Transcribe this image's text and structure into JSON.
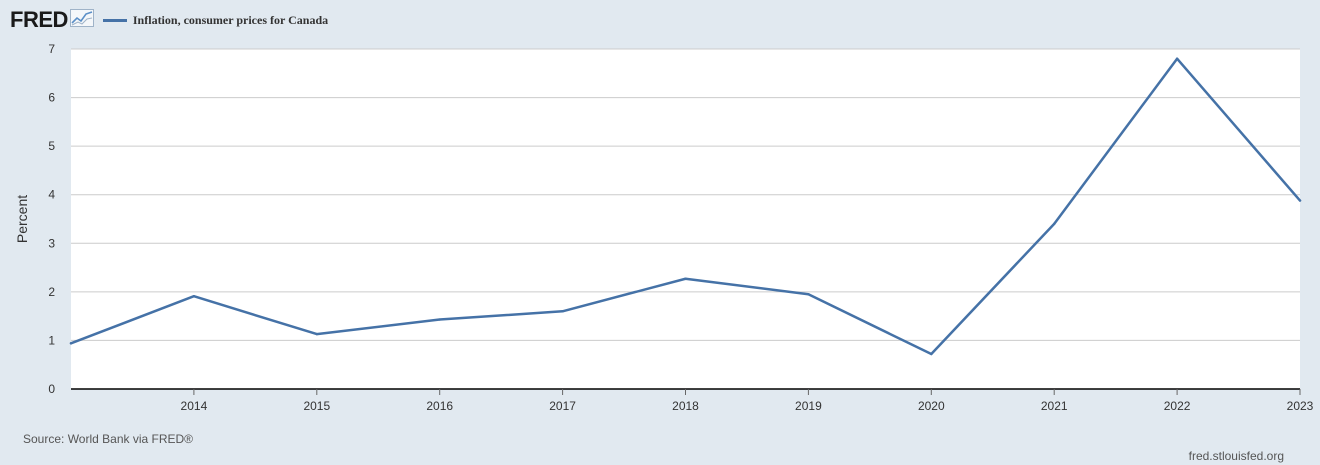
{
  "header": {
    "logo_text": "FRED",
    "logo_icon": "line-graph-icon"
  },
  "colors": {
    "background": "#e1e9f0",
    "plot_background": "#ffffff",
    "series": "#4572a7",
    "grid": "#cccccc",
    "axis": "#000000"
  },
  "chart_data": {
    "type": "line",
    "title": "",
    "xlabel": "",
    "ylabel": "Percent",
    "x": [
      2013,
      2014,
      2015,
      2016,
      2017,
      2018,
      2019,
      2020,
      2021,
      2022,
      2023
    ],
    "series": [
      {
        "name": "Inflation, consumer prices for Canada",
        "values": [
          0.94,
          1.91,
          1.13,
          1.43,
          1.6,
          2.27,
          1.95,
          0.72,
          3.4,
          6.8,
          3.88
        ]
      }
    ],
    "xlim": [
      2013,
      2023
    ],
    "ylim": [
      0,
      7
    ],
    "x_ticks": [
      "2014",
      "2015",
      "2016",
      "2017",
      "2018",
      "2019",
      "2020",
      "2021",
      "2022",
      "2023"
    ],
    "y_ticks": [
      "0",
      "1",
      "2",
      "3",
      "4",
      "5",
      "6",
      "7"
    ],
    "grid": true,
    "legend_position": "top-left"
  },
  "footer": {
    "source": "Source: World Bank via FRED®",
    "site": "fred.stlouisfed.org"
  }
}
